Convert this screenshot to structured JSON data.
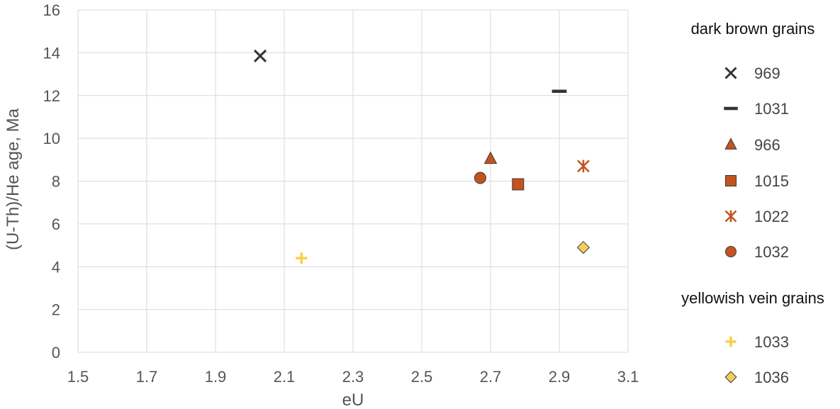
{
  "chart_data": {
    "type": "scatter",
    "title": "",
    "xlabel": "eU",
    "ylabel": "(U-Th)/He age, Ma",
    "xlim": [
      1.5,
      3.1
    ],
    "ylim": [
      0,
      16
    ],
    "xticks": [
      1.5,
      1.7,
      1.9,
      2.1,
      2.3,
      2.5,
      2.7,
      2.9,
      3.1
    ],
    "xtick_labels": [
      "1.5",
      "1.7",
      "1.9",
      "2.1",
      "2.3",
      "2.5",
      "2.7",
      "2.9",
      "3.1"
    ],
    "yticks": [
      0,
      2,
      4,
      6,
      8,
      10,
      12,
      14,
      16
    ],
    "ytick_labels": [
      "0",
      "2",
      "4",
      "6",
      "8",
      "10",
      "12",
      "14",
      "16"
    ],
    "grid": true,
    "legend_position": "right",
    "legend_groups": [
      {
        "heading": "dark brown grains",
        "series": [
          {
            "name": "969",
            "marker": "x",
            "color": "#333333",
            "x": [
              2.03
            ],
            "y": [
              13.85
            ]
          },
          {
            "name": "1031",
            "marker": "dash",
            "color": "#333333",
            "x": [
              2.9
            ],
            "y": [
              12.2
            ]
          },
          {
            "name": "966",
            "marker": "triangle",
            "color": "#c5531f",
            "x": [
              2.7
            ],
            "y": [
              9.05
            ]
          },
          {
            "name": "1015",
            "marker": "square",
            "color": "#c5531f",
            "x": [
              2.78
            ],
            "y": [
              7.85
            ]
          },
          {
            "name": "1022",
            "marker": "asterisk",
            "color": "#c5531f",
            "x": [
              2.97
            ],
            "y": [
              8.7
            ]
          },
          {
            "name": "1032",
            "marker": "circle",
            "color": "#c5531f",
            "x": [
              2.67
            ],
            "y": [
              8.15
            ]
          }
        ]
      },
      {
        "heading": "yellowish vein grains",
        "series": [
          {
            "name": "1033",
            "marker": "plus",
            "color": "#f7d04a",
            "x": [
              2.15
            ],
            "y": [
              4.4
            ]
          },
          {
            "name": "1036",
            "marker": "diamond",
            "color": "#f5cd5a",
            "x": [
              2.97
            ],
            "y": [
              4.9
            ]
          }
        ]
      }
    ]
  }
}
